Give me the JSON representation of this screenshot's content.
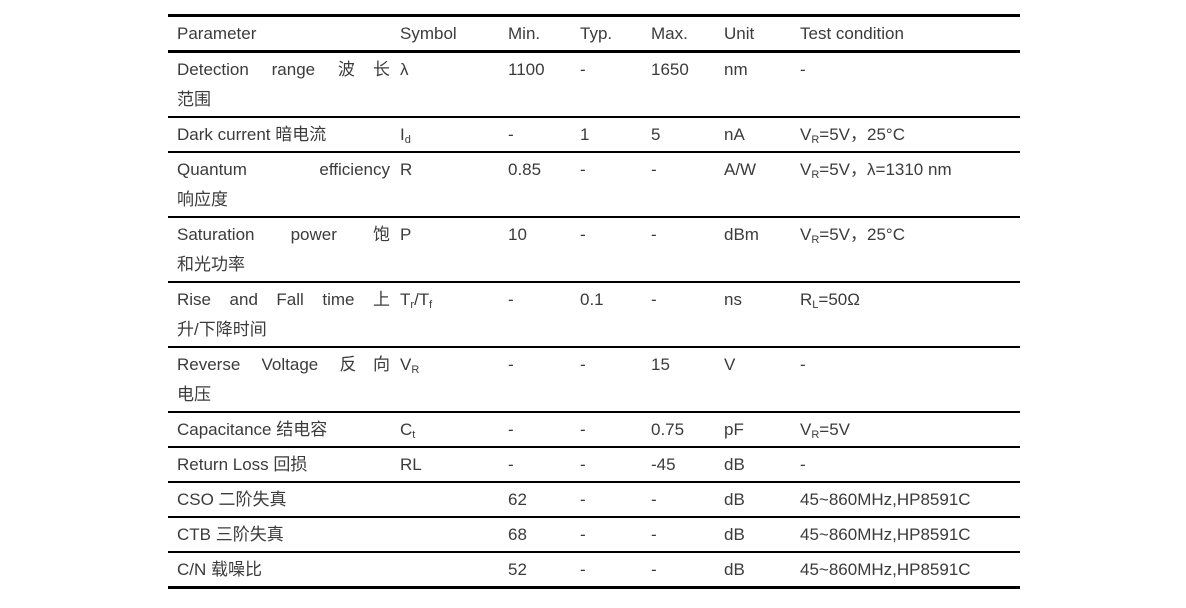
{
  "page": {
    "background": "#ffffff",
    "text_color": "#3b3b3b",
    "rule_color": "#000000"
  },
  "chart_data": {
    "type": "table",
    "title": "",
    "columns": [
      "Parameter",
      "Symbol",
      "Min.",
      "Typ.",
      "Max.",
      "Unit",
      "Test condition"
    ],
    "rows": [
      [
        "Detection range 波长范围",
        "λ",
        "1100",
        "-",
        "1650",
        "nm",
        "-"
      ],
      [
        "Dark current 暗电流",
        "Id",
        "-",
        "1",
        "5",
        "nA",
        "VR=5V，25°C"
      ],
      [
        "Quantum efficiency 响应度",
        "R",
        "0.85",
        "-",
        "-",
        "A/W",
        "VR=5V，λ=1310 nm"
      ],
      [
        "Saturation power 饱和光功率",
        "P",
        "10",
        "-",
        "-",
        "dBm",
        "VR=5V，25°C"
      ],
      [
        "Rise and Fall time 上升/下降时间",
        "Tr/Tf",
        "-",
        "0.1",
        "-",
        "ns",
        "RL=50Ω"
      ],
      [
        "Reverse Voltage 反向电压",
        "VR",
        "-",
        "-",
        "15",
        "V",
        "-"
      ],
      [
        "Capacitance 结电容",
        "Ct",
        "-",
        "-",
        "0.75",
        "pF",
        "VR=5V"
      ],
      [
        "Return Loss 回损",
        "RL",
        "-",
        "-",
        "-45",
        "dB",
        "-"
      ],
      [
        "CSO 二阶失真",
        "",
        "62",
        "-",
        "-",
        "dB",
        "45~860MHz,HP8591C"
      ],
      [
        "CTB 三阶失真",
        "",
        "68",
        "-",
        "-",
        "dB",
        "45~860MHz,HP8591C"
      ],
      [
        "C/N 载噪比",
        "",
        "52",
        "-",
        "-",
        "dB",
        "45~860MHz,HP8591C"
      ]
    ]
  },
  "table": {
    "header": [
      "Parameter",
      "Symbol",
      "Min.",
      "Typ.",
      "Max.",
      "Unit",
      "Test condition"
    ],
    "rows": [
      {
        "parameter_lines": [
          "Detection range 波长",
          "范围"
        ],
        "symbol": [
          {
            "t": "λ"
          }
        ],
        "min": "1100",
        "typ": "-",
        "max": "1650",
        "unit": "nm",
        "test": [
          {
            "t": "-"
          }
        ]
      },
      {
        "parameter_lines": [
          "Dark current 暗电流"
        ],
        "symbol": [
          {
            "t": "I"
          },
          {
            "t": "d",
            "sub": true
          }
        ],
        "min": "-",
        "typ": "1",
        "max": "5",
        "unit": "nA",
        "test": [
          {
            "t": "V"
          },
          {
            "t": "R",
            "sub": true
          },
          {
            "t": "=5V，25°C"
          }
        ]
      },
      {
        "parameter_lines": [
          "Quantum efficiency",
          "响应度"
        ],
        "symbol": [
          {
            "t": "R"
          }
        ],
        "min": "0.85",
        "typ": "-",
        "max": "-",
        "unit": "A/W",
        "test": [
          {
            "t": "V"
          },
          {
            "t": "R",
            "sub": true
          },
          {
            "t": "=5V，λ=1310 nm"
          }
        ]
      },
      {
        "parameter_lines": [
          "Saturation power 饱",
          "和光功率"
        ],
        "symbol": [
          {
            "t": "P"
          }
        ],
        "min": "10",
        "typ": "-",
        "max": "-",
        "unit": "dBm",
        "test": [
          {
            "t": "V"
          },
          {
            "t": "R",
            "sub": true
          },
          {
            "t": "=5V，25°C"
          }
        ]
      },
      {
        "parameter_lines": [
          "Rise and Fall time 上",
          "升/下降时间"
        ],
        "symbol": [
          {
            "t": "T"
          },
          {
            "t": "r",
            "sub": true
          },
          {
            "t": "/T"
          },
          {
            "t": "f",
            "sub": true
          }
        ],
        "min": "-",
        "typ": "0.1",
        "max": "-",
        "unit": "ns",
        "test": [
          {
            "t": "R"
          },
          {
            "t": "L",
            "sub": true
          },
          {
            "t": "=50Ω"
          }
        ]
      },
      {
        "parameter_lines": [
          "Reverse Voltage 反向",
          "电压"
        ],
        "symbol": [
          {
            "t": "V"
          },
          {
            "t": "R",
            "sub": true
          }
        ],
        "min": "-",
        "typ": "-",
        "max": "15",
        "unit": "V",
        "test": [
          {
            "t": "-"
          }
        ]
      },
      {
        "parameter_lines": [
          "Capacitance 结电容"
        ],
        "symbol": [
          {
            "t": "C"
          },
          {
            "t": "t",
            "sub": true
          }
        ],
        "min": "-",
        "typ": "-",
        "max": "0.75",
        "unit": "pF",
        "test": [
          {
            "t": "V"
          },
          {
            "t": "R",
            "sub": true
          },
          {
            "t": "=5V"
          }
        ]
      },
      {
        "parameter_lines": [
          "Return Loss 回损"
        ],
        "symbol": [
          {
            "t": "RL"
          }
        ],
        "min": "-",
        "typ": "-",
        "max": "-45",
        "unit": "dB",
        "test": [
          {
            "t": "-"
          }
        ]
      },
      {
        "parameter_lines": [
          "CSO 二阶失真"
        ],
        "symbol": [],
        "min": "62",
        "typ": "-",
        "max": "-",
        "unit": "dB",
        "test": [
          {
            "t": "45~860MHz,HP8591C"
          }
        ]
      },
      {
        "parameter_lines": [
          "CTB 三阶失真"
        ],
        "symbol": [],
        "min": "68",
        "typ": "-",
        "max": "-",
        "unit": "dB",
        "test": [
          {
            "t": "45~860MHz,HP8591C"
          }
        ]
      },
      {
        "parameter_lines": [
          "C/N 载噪比"
        ],
        "symbol": [],
        "min": "52",
        "typ": "-",
        "max": "-",
        "unit": "dB",
        "test": [
          {
            "t": "45~860MHz,HP8591C"
          }
        ]
      }
    ]
  }
}
